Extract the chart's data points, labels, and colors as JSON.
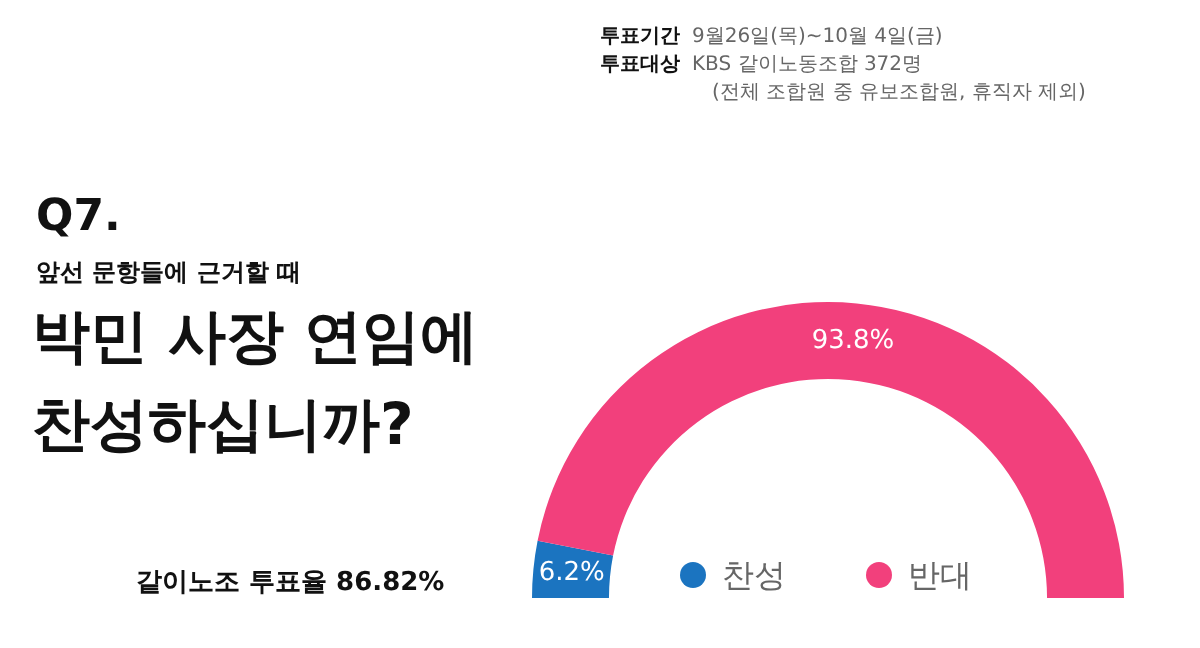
{
  "chart_data": {
    "type": "donut",
    "title": "박민 사장 연임에 찬성하십니까?",
    "subtitle": "앞선 문항들에 근거할 때",
    "annotations": [
      "Q7.",
      "투표기간",
      "9월26일(목)~10월 4일(금)",
      "투표대상",
      "KBS 같이노동조합 372명",
      "(전체 조합원 중 유보조합원, 휴직자 제외)",
      "같이노조 투표율 86.82%"
    ],
    "categories": [
      "찬성",
      "반대"
    ],
    "values": [
      6.2,
      93.8
    ],
    "colors": [
      "#1b74c0",
      "#f2407c"
    ],
    "value_labels": [
      "6.2%",
      "93.8%"
    ],
    "legend": "bottom"
  }
}
